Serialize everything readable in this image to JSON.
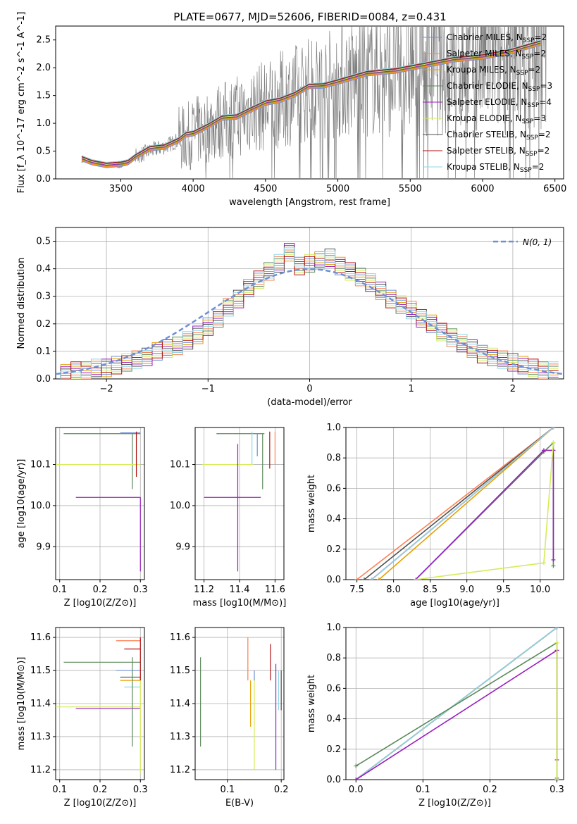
{
  "title": "PLATE=0677, MJD=52606, FIBERID=0084, z=0.431",
  "models": [
    {
      "name": "Chabrier MILES",
      "nssp": "2",
      "color": "#6f8fd6"
    },
    {
      "name": "Salpeter MILES",
      "nssp": "2",
      "color": "#ff7f50"
    },
    {
      "name": "Kroupa MILES",
      "nssp": "2",
      "color": "#e8a000"
    },
    {
      "name": "Chabrier ELODIE",
      "nssp": "3",
      "color": "#5a8a5a"
    },
    {
      "name": "Salpeter ELODIE",
      "nssp": "4",
      "color": "#9a1fbf"
    },
    {
      "name": "Kroupa ELODIE",
      "nssp": "3",
      "color": "#d4ec5a"
    },
    {
      "name": "Chabrier STELIB",
      "nssp": "2",
      "color": "#505050"
    },
    {
      "name": "Salpeter STELIB",
      "nssp": "2",
      "color": "#b21010"
    },
    {
      "name": "Kroupa STELIB",
      "nssp": "2",
      "color": "#8fd6e8"
    }
  ],
  "nssp_label": "N",
  "nssp_sub": "SSP",
  "chart_data": [
    {
      "id": "spectrum",
      "type": "line",
      "xlabel": "wavelength [Angstrom, rest frame]",
      "ylabel": "Flux [f_λ 10^-17 erg cm^-2 s^-1 A^-1]",
      "xlim": [
        3050,
        6560
      ],
      "ylim": [
        0,
        2.75
      ],
      "xticks": [
        "3500",
        "4000",
        "4500",
        "5000",
        "5500",
        "6000",
        "6500"
      ],
      "yticks": [
        "0.0",
        "0.5",
        "1.0",
        "1.5",
        "2.0",
        "2.5"
      ],
      "grid": false,
      "legend": "right",
      "model_points": {
        "x": [
          3230,
          3300,
          3400,
          3500,
          3550,
          3600,
          3700,
          3800,
          3900,
          3950,
          4000,
          4100,
          4200,
          4300,
          4400,
          4500,
          4600,
          4700,
          4800,
          4900,
          5000,
          5200,
          5400,
          5600,
          5800,
          6000,
          6200,
          6400
        ],
        "y": [
          0.32,
          0.3,
          0.25,
          0.22,
          0.3,
          0.4,
          0.5,
          0.58,
          0.7,
          0.75,
          0.82,
          0.95,
          1.05,
          1.12,
          1.25,
          1.32,
          1.42,
          1.52,
          1.62,
          1.68,
          1.75,
          1.85,
          1.95,
          2.05,
          2.1,
          2.2,
          2.3,
          2.4
        ]
      }
    },
    {
      "id": "residuals",
      "type": "histogram",
      "xlabel": "(data-model)/error",
      "ylabel": "Normed distribution",
      "xlim": [
        -2.5,
        2.5
      ],
      "ylim": [
        0,
        0.55
      ],
      "xticks": [
        "−2",
        "−1",
        "0",
        "1",
        "2"
      ],
      "yticks": [
        "0.0",
        "0.1",
        "0.2",
        "0.3",
        "0.4",
        "0.5"
      ],
      "grid": true,
      "legend": "top-right",
      "reference": "N(0, 1)",
      "bin_centers": [
        -2.4,
        -2.3,
        -2.2,
        -2.1,
        -2.0,
        -1.9,
        -1.8,
        -1.7,
        -1.6,
        -1.5,
        -1.4,
        -1.3,
        -1.2,
        -1.1,
        -1.0,
        -0.9,
        -0.8,
        -0.7,
        -0.6,
        -0.5,
        -0.4,
        -0.3,
        -0.2,
        -0.1,
        0.0,
        0.1,
        0.2,
        0.3,
        0.4,
        0.5,
        0.6,
        0.7,
        0.8,
        0.9,
        1.0,
        1.1,
        1.2,
        1.3,
        1.4,
        1.5,
        1.6,
        1.7,
        1.8,
        1.9,
        2.0,
        2.1,
        2.2,
        2.3,
        2.4
      ],
      "base": [
        0.02,
        0.03,
        0.03,
        0.04,
        0.04,
        0.05,
        0.06,
        0.07,
        0.08,
        0.1,
        0.11,
        0.12,
        0.14,
        0.16,
        0.19,
        0.22,
        0.26,
        0.29,
        0.33,
        0.36,
        0.39,
        0.42,
        0.46,
        0.41,
        0.42,
        0.43,
        0.44,
        0.41,
        0.39,
        0.37,
        0.35,
        0.32,
        0.29,
        0.27,
        0.25,
        0.22,
        0.2,
        0.17,
        0.15,
        0.13,
        0.11,
        0.09,
        0.08,
        0.07,
        0.06,
        0.05,
        0.04,
        0.03,
        0.03
      ]
    },
    {
      "id": "age_vs_Z",
      "type": "scatter",
      "xlabel": "Z [log10(Z/Z⊙)]",
      "ylabel": "age [log10(age/yr)]",
      "xlim": [
        0.09,
        0.31
      ],
      "ylim": [
        9.82,
        10.19
      ],
      "xticks": [
        "0.1",
        "0.2",
        "0.3"
      ],
      "yticks": [
        "9.9",
        "10.0",
        "10.1"
      ],
      "grid": true,
      "segments": [
        {
          "model": 3,
          "y": 10.175,
          "x0": 0.11,
          "x1": 0.3
        },
        {
          "model": 3,
          "x": 0.28,
          "y0": 10.04,
          "y1": 10.175
        },
        {
          "model": 5,
          "y": 10.1,
          "x0": 0.09,
          "x1": 0.3
        },
        {
          "model": 4,
          "y": 10.02,
          "x0": 0.14,
          "x1": 0.3
        },
        {
          "model": 4,
          "x": 0.3,
          "y0": 9.84,
          "y1": 10.02
        },
        {
          "model": 0,
          "y": 10.177,
          "x0": 0.25,
          "x1": 0.3
        },
        {
          "model": 7,
          "x": 0.29,
          "y0": 10.07,
          "y1": 10.18
        }
      ]
    },
    {
      "id": "age_vs_mass",
      "type": "scatter",
      "xlabel": "mass [log10(M/M⊙)]",
      "ylabel": "",
      "xlim": [
        11.15,
        11.65
      ],
      "ylim": [
        9.82,
        10.19
      ],
      "xticks": [
        "11.2",
        "11.4",
        "11.6"
      ],
      "yticks": [
        "9.9",
        "10.0",
        "10.1"
      ],
      "grid": true,
      "segments": [
        {
          "model": 3,
          "y": 10.175,
          "x0": 11.27,
          "x1": 11.54
        },
        {
          "model": 3,
          "x": 11.53,
          "y0": 10.04,
          "y1": 10.175
        },
        {
          "model": 5,
          "y": 10.1,
          "x0": 11.19,
          "x1": 11.48
        },
        {
          "model": 4,
          "y": 10.02,
          "x0": 11.2,
          "x1": 11.52
        },
        {
          "model": 4,
          "x": 11.39,
          "y0": 9.84,
          "y1": 10.15
        },
        {
          "model": 0,
          "x": 11.5,
          "y0": 10.12,
          "y1": 10.175
        },
        {
          "model": 1,
          "x": 11.6,
          "y0": 10.1,
          "y1": 10.18
        },
        {
          "model": 7,
          "x": 11.57,
          "y0": 10.09,
          "y1": 10.18
        },
        {
          "model": 8,
          "x": 11.47,
          "y0": 10.1,
          "y1": 10.18
        }
      ]
    },
    {
      "id": "weight_vs_age",
      "type": "line",
      "xlabel": "age [log10(age/yr)]",
      "ylabel": "mass weight",
      "xlim": [
        7.35,
        10.32
      ],
      "ylim": [
        0,
        1
      ],
      "xticks": [
        "7.5",
        "8.0",
        "8.5",
        "9.0",
        "9.5",
        "10.0"
      ],
      "yticks": [
        "0.0",
        "0.2",
        "0.4",
        "0.6",
        "0.8",
        "1.0"
      ],
      "grid": true,
      "series": [
        {
          "model": 1,
          "x": [
            7.5,
            10.18
          ],
          "y": [
            0.0,
            1.0
          ]
        },
        {
          "model": 0,
          "x": [
            7.7,
            10.18
          ],
          "y": [
            0.0,
            1.0
          ]
        },
        {
          "model": 2,
          "x": [
            7.8,
            10.18
          ],
          "y": [
            0.0,
            1.0
          ]
        },
        {
          "model": 6,
          "x": [
            7.6,
            10.18
          ],
          "y": [
            0.0,
            1.0
          ]
        },
        {
          "model": 7,
          "x": [
            7.7,
            10.18
          ],
          "y": [
            0.0,
            1.0
          ]
        },
        {
          "model": 8,
          "x": [
            7.7,
            10.18
          ],
          "y": [
            0.0,
            1.0
          ]
        },
        {
          "model": 3,
          "x": [
            8.3,
            10.05,
            10.18,
            10.18
          ],
          "y": [
            0.0,
            0.84,
            0.9,
            0.09
          ]
        },
        {
          "model": 4,
          "x": [
            8.3,
            10.05,
            10.18,
            10.18
          ],
          "y": [
            0.0,
            0.85,
            0.85,
            0.13
          ]
        },
        {
          "model": 5,
          "x": [
            8.3,
            10.05,
            10.18
          ],
          "y": [
            0.0,
            0.11,
            0.9
          ]
        }
      ]
    },
    {
      "id": "mass_vs_Z",
      "type": "scatter",
      "xlabel": "Z [log10(Z/Z⊙)]",
      "ylabel": "mass [log10(M/M⊙)]",
      "xlim": [
        0.09,
        0.31
      ],
      "ylim": [
        11.17,
        11.63
      ],
      "xticks": [
        "0.1",
        "0.2",
        "0.3"
      ],
      "yticks": [
        "11.2",
        "11.3",
        "11.4",
        "11.5",
        "11.6"
      ],
      "grid": true,
      "segments": [
        {
          "model": 1,
          "y": 11.59,
          "x0": 0.24,
          "x1": 0.3
        },
        {
          "model": 7,
          "y": 11.565,
          "x0": 0.26,
          "x1": 0.3
        },
        {
          "model": 3,
          "y": 11.525,
          "x0": 0.11,
          "x1": 0.3
        },
        {
          "model": 0,
          "y": 11.5,
          "x0": 0.24,
          "x1": 0.3
        },
        {
          "model": 6,
          "y": 11.48,
          "x0": 0.25,
          "x1": 0.3
        },
        {
          "model": 2,
          "y": 11.47,
          "x0": 0.25,
          "x1": 0.3
        },
        {
          "model": 8,
          "y": 11.45,
          "x0": 0.26,
          "x1": 0.3
        },
        {
          "model": 5,
          "y": 11.39,
          "x0": 0.09,
          "x1": 0.3
        },
        {
          "model": 4,
          "y": 11.385,
          "x0": 0.14,
          "x1": 0.3
        },
        {
          "model": 3,
          "x": 0.28,
          "y0": 11.27,
          "y1": 11.54
        },
        {
          "model": 5,
          "x": 0.3,
          "y0": 11.19,
          "y1": 11.48
        },
        {
          "model": 7,
          "x": 0.3,
          "y0": 11.47,
          "y1": 11.6
        }
      ]
    },
    {
      "id": "mass_vs_ebv",
      "type": "scatter",
      "xlabel": "E(B-V)",
      "ylabel": "",
      "xlim": [
        0.04,
        0.205
      ],
      "ylim": [
        11.17,
        11.63
      ],
      "xticks": [
        "0.1",
        "0.2"
      ],
      "yticks": [
        "11.2",
        "11.3",
        "11.4",
        "11.5",
        "11.6"
      ],
      "grid": true,
      "segments": [
        {
          "model": 3,
          "x": 0.05,
          "y0": 11.27,
          "y1": 11.54
        },
        {
          "model": 1,
          "x": 0.138,
          "y0": 11.47,
          "y1": 11.6
        },
        {
          "model": 2,
          "x": 0.143,
          "y0": 11.33,
          "y1": 11.47
        },
        {
          "model": 5,
          "x": 0.15,
          "y0": 11.2,
          "y1": 11.48
        },
        {
          "model": 0,
          "x": 0.15,
          "y0": 11.47,
          "y1": 11.5
        },
        {
          "model": 7,
          "x": 0.18,
          "y0": 11.47,
          "y1": 11.58
        },
        {
          "model": 4,
          "x": 0.19,
          "y0": 11.2,
          "y1": 11.52
        },
        {
          "model": 8,
          "x": 0.195,
          "y0": 11.38,
          "y1": 11.5
        },
        {
          "model": 6,
          "x": 0.2,
          "y0": 11.38,
          "y1": 11.5
        }
      ]
    },
    {
      "id": "weight_vs_Z",
      "type": "line",
      "xlabel": "Z [log10(Z/Z⊙)]",
      "ylabel": "mass weight",
      "xlim": [
        -0.015,
        0.31
      ],
      "ylim": [
        0,
        1
      ],
      "xticks": [
        "0.0",
        "0.1",
        "0.2",
        "0.3"
      ],
      "yticks": [
        "0.0",
        "0.2",
        "0.4",
        "0.6",
        "0.8",
        "1.0"
      ],
      "grid": true,
      "series": [
        {
          "model": 0,
          "x": [
            0.0,
            0.3
          ],
          "y": [
            0.0,
            1.0
          ]
        },
        {
          "model": 1,
          "x": [
            0.0,
            0.3
          ],
          "y": [
            0.0,
            1.0
          ]
        },
        {
          "model": 2,
          "x": [
            0.0,
            0.3
          ],
          "y": [
            0.0,
            1.0
          ]
        },
        {
          "model": 6,
          "x": [
            0.0,
            0.3
          ],
          "y": [
            0.0,
            1.0
          ]
        },
        {
          "model": 8,
          "x": [
            0.0,
            0.3
          ],
          "y": [
            0.0,
            1.0
          ]
        },
        {
          "model": 3,
          "x": [
            0.0,
            0.3,
            0.3
          ],
          "y": [
            0.09,
            0.9,
            0.01
          ]
        },
        {
          "model": 4,
          "x": [
            0.0,
            0.3,
            0.3
          ],
          "y": [
            0.0,
            0.85,
            0.13
          ]
        },
        {
          "model": 5,
          "x": [
            0.3,
            0.3
          ],
          "y": [
            0.0,
            0.9
          ]
        }
      ]
    }
  ]
}
